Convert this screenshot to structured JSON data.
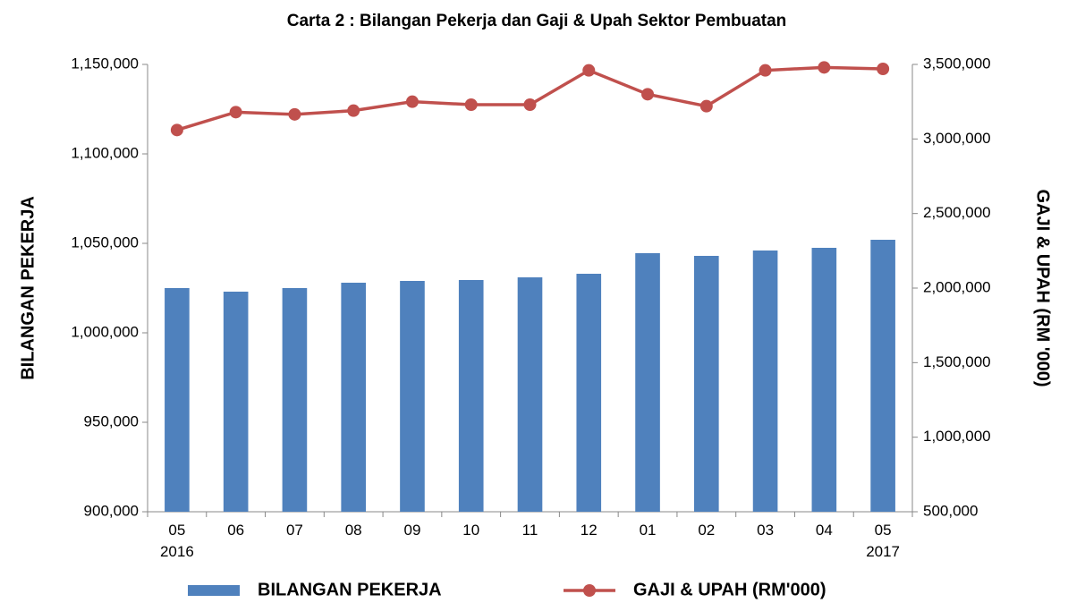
{
  "chart_data": {
    "type": "bar-line",
    "title": "Carta 2 : Bilangan Pekerja dan Gaji & Upah Sektor Pembuatan",
    "categories": [
      "05\n2016",
      "06",
      "07",
      "08",
      "09",
      "10",
      "11",
      "12",
      "01",
      "02",
      "03",
      "04",
      "05\n2017"
    ],
    "series": [
      {
        "name": "BILANGAN PEKERJA",
        "type": "bar",
        "axis": "y",
        "color": "#4f81bd",
        "values": [
          1025000,
          1023000,
          1025000,
          1028000,
          1029000,
          1029500,
          1031000,
          1033000,
          1044500,
          1043000,
          1046000,
          1047500,
          1052000
        ]
      },
      {
        "name": "GAJI & UPAH (RM'000)",
        "type": "line",
        "axis": "y2",
        "color": "#c0504d",
        "values": [
          3060000,
          3180000,
          3165000,
          3190000,
          3250000,
          3230000,
          3230000,
          3460000,
          3300000,
          3220000,
          3460000,
          3480000,
          3470000
        ]
      }
    ],
    "ylabel": "BILANGAN PEKERJA",
    "y2label": "GAJI & UPAH (RM '000)",
    "ylim": [
      900000,
      1150000
    ],
    "yticks": [
      {
        "value": 900000,
        "label": "900,000"
      },
      {
        "value": 950000,
        "label": "950,000"
      },
      {
        "value": 1000000,
        "label": "1,000,000"
      },
      {
        "value": 1050000,
        "label": "1,050,000"
      },
      {
        "value": 1100000,
        "label": "1,100,000"
      },
      {
        "value": 1150000,
        "label": "1,150,000"
      }
    ],
    "y2lim": [
      500000,
      3500000
    ],
    "y2ticks": [
      {
        "value": 500000,
        "label": "500,000"
      },
      {
        "value": 1000000,
        "label": "1,000,000"
      },
      {
        "value": 1500000,
        "label": "1,500,000"
      },
      {
        "value": 2000000,
        "label": "2,000,000"
      },
      {
        "value": 2500000,
        "label": "2,500,000"
      },
      {
        "value": 3000000,
        "label": "3,000,000"
      },
      {
        "value": 3500000,
        "label": "3,500,000"
      }
    ],
    "grid": false,
    "legend": "bottom"
  }
}
